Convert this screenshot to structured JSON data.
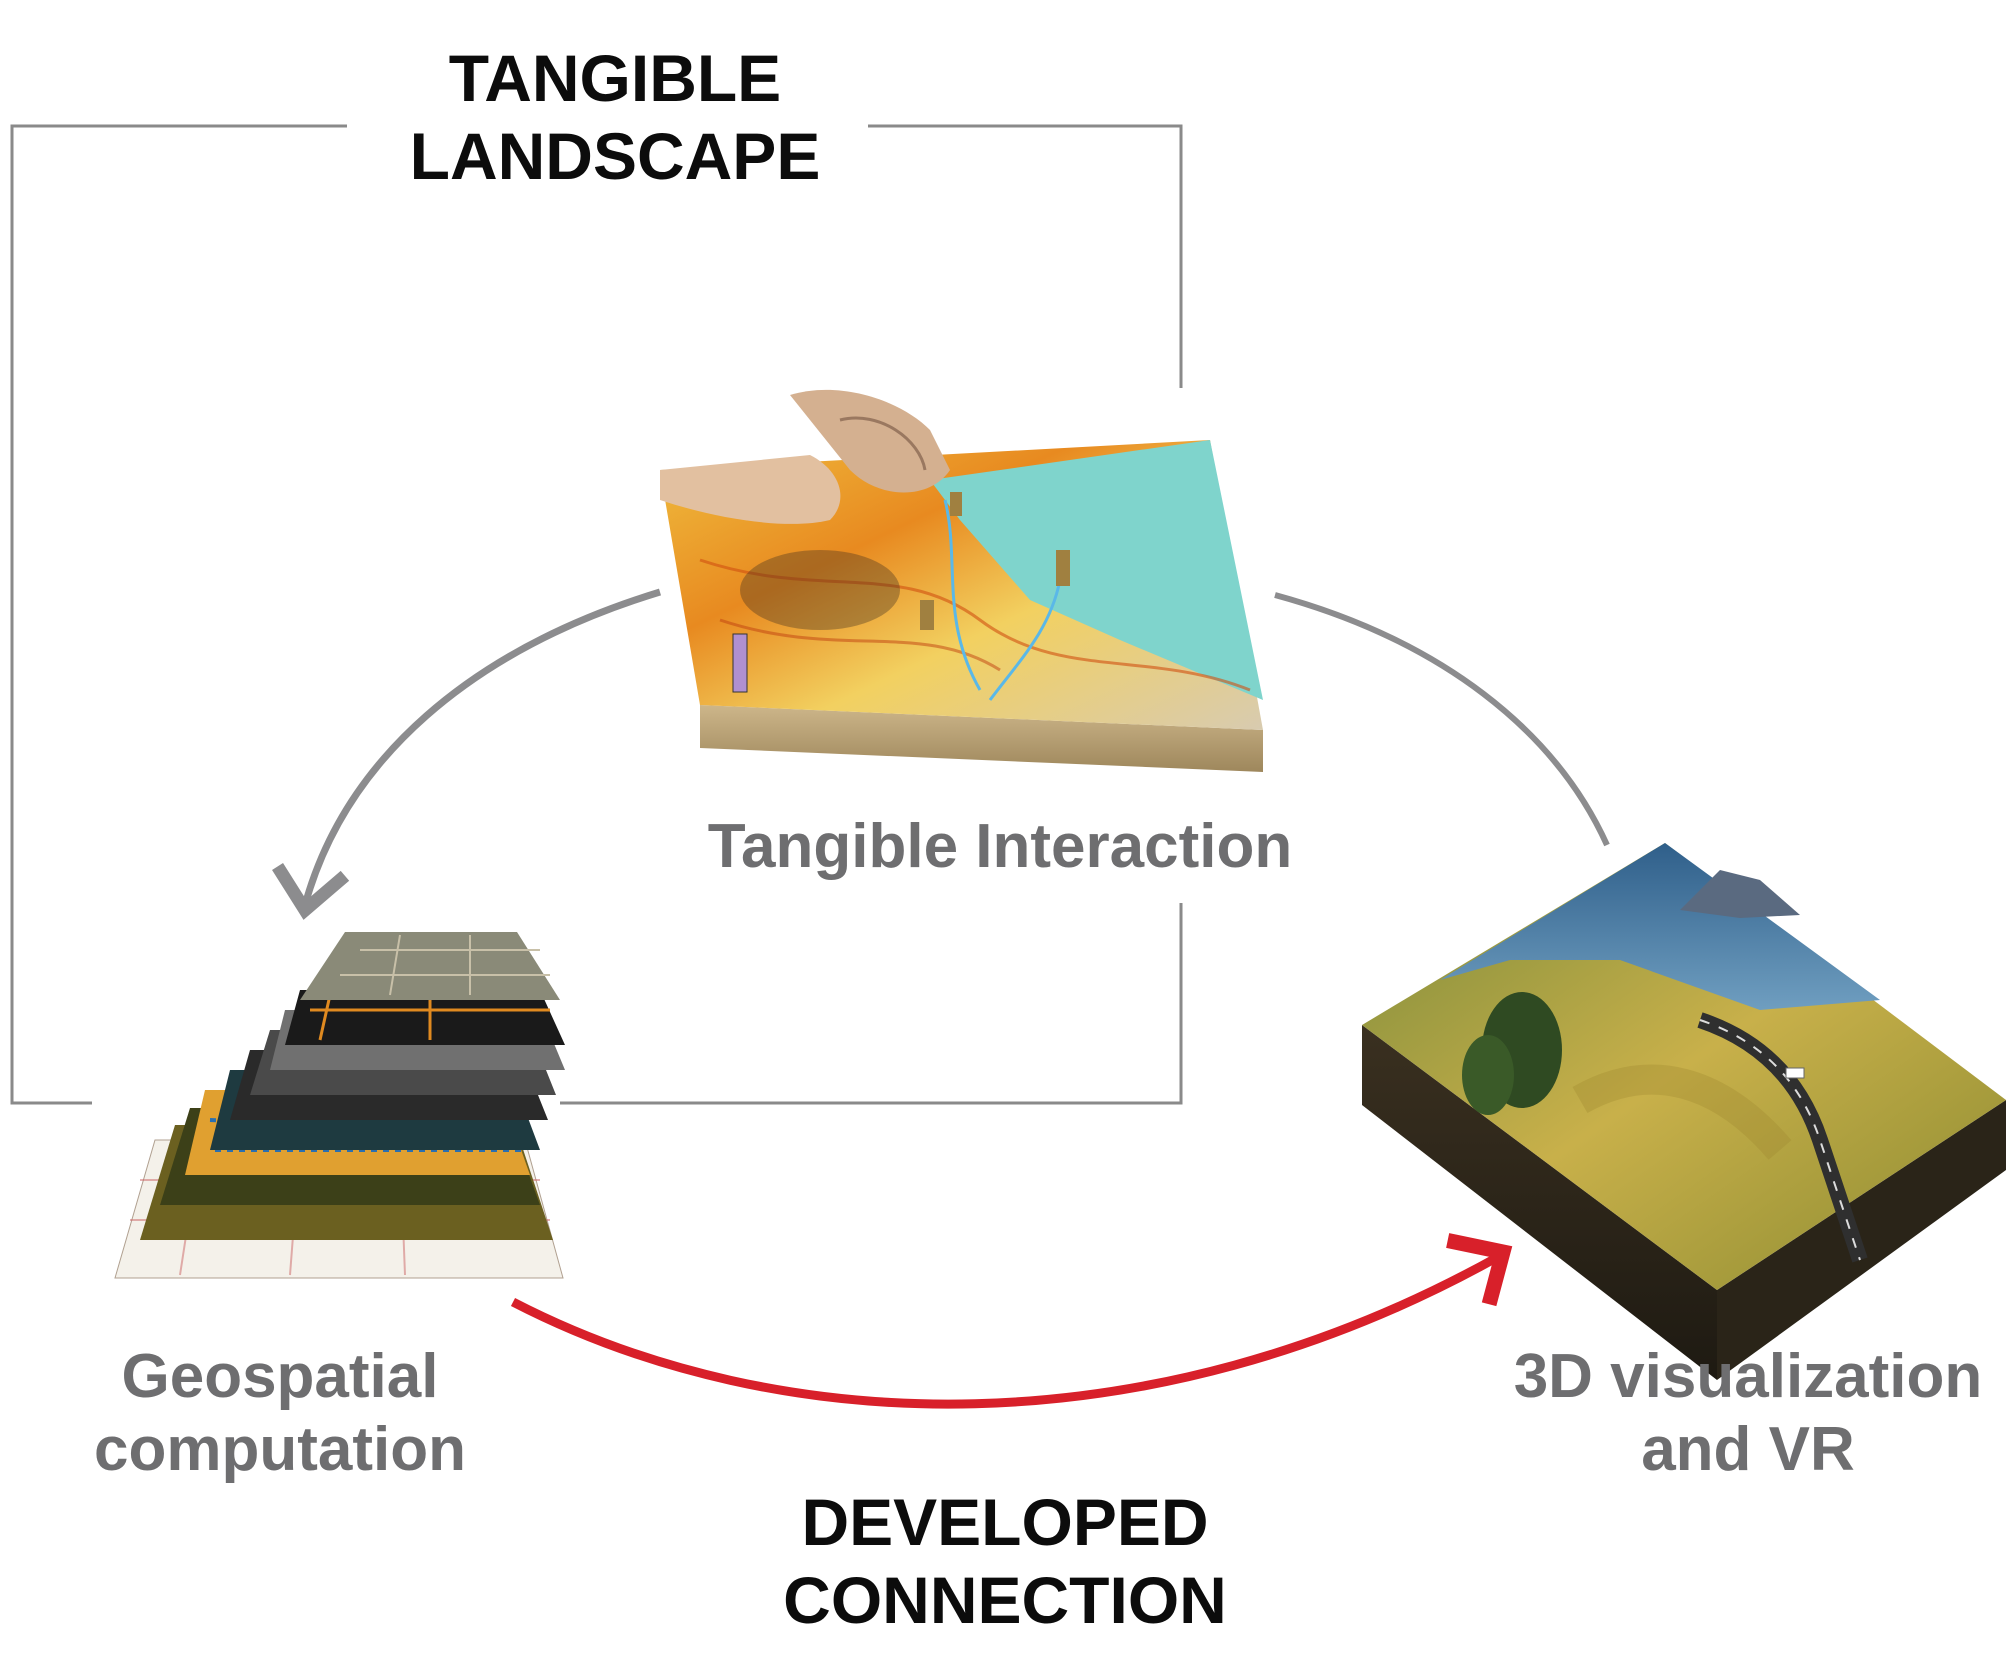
{
  "title": {
    "line1": "TANGIBLE",
    "line2": "LANDSCAPE"
  },
  "nodes": {
    "tangible": {
      "label": "Tangible Interaction"
    },
    "geo": {
      "line1": "Geospatial",
      "line2": "computation"
    },
    "vis": {
      "line1": "3D visualization",
      "line2": "and VR"
    }
  },
  "connection": {
    "line1": "DEVELOPED",
    "line2": "CONNECTION"
  },
  "colors": {
    "frame": "#8a8a8a",
    "arrow_grey": "#8c8c8e",
    "arrow_red": "#d8202a",
    "label_grey": "#6e6e70",
    "label_dark": "#0c0c0c"
  }
}
